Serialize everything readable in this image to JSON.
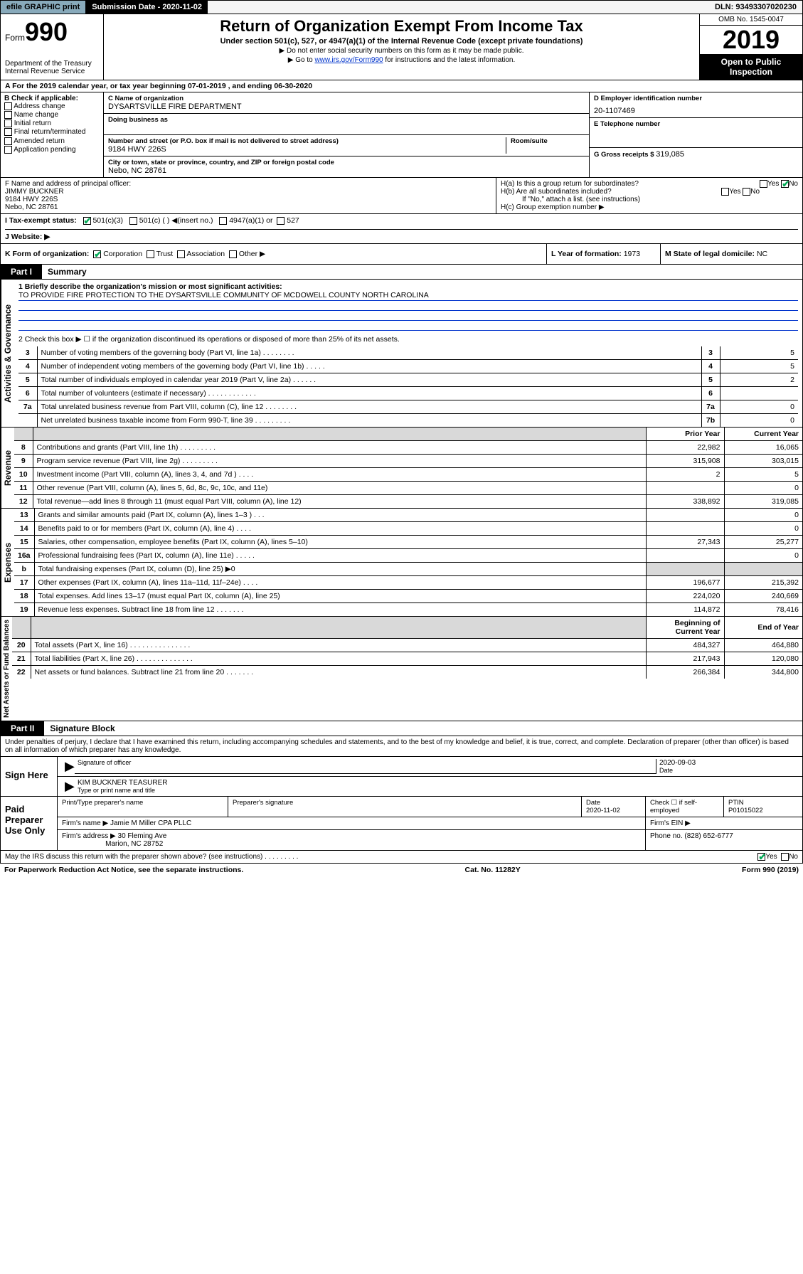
{
  "topbar": {
    "efile": "efile GRAPHIC print",
    "subdate_label": "Submission Date - 2020-11-02",
    "dln": "DLN: 93493307020230"
  },
  "header": {
    "form_label": "Form",
    "form_no": "990",
    "dept": "Department of the Treasury",
    "irs": "Internal Revenue Service",
    "title": "Return of Organization Exempt From Income Tax",
    "subtitle": "Under section 501(c), 527, or 4947(a)(1) of the Internal Revenue Code (except private foundations)",
    "note1": "▶ Do not enter social security numbers on this form as it may be made public.",
    "note2_pre": "▶ Go to ",
    "note2_link": "www.irs.gov/Form990",
    "note2_post": " for instructions and the latest information.",
    "omb": "OMB No. 1545-0047",
    "year": "2019",
    "open": "Open to Public Inspection"
  },
  "rowA": "A For the 2019 calendar year, or tax year beginning 07-01-2019   , and ending 06-30-2020",
  "boxB": {
    "label": "B Check if applicable:",
    "opts": [
      "Address change",
      "Name change",
      "Initial return",
      "Final return/terminated",
      "Amended return",
      "Application pending"
    ]
  },
  "boxC": {
    "name_lbl": "C Name of organization",
    "name": "DYSARTSVILLE FIRE DEPARTMENT",
    "dba_lbl": "Doing business as",
    "addr_lbl": "Number and street (or P.O. box if mail is not delivered to street address)",
    "room_lbl": "Room/suite",
    "addr": "9184 HWY 226S",
    "city_lbl": "City or town, state or province, country, and ZIP or foreign postal code",
    "city": "Nebo, NC  28761"
  },
  "boxD": {
    "lbl": "D Employer identification number",
    "val": "20-1107469"
  },
  "boxE": {
    "lbl": "E Telephone number",
    "val": ""
  },
  "boxG": {
    "lbl": "G Gross receipts $",
    "val": "319,085"
  },
  "boxF": {
    "lbl": "F  Name and address of principal officer:",
    "name": "JIMMY BUCKNER",
    "addr1": "9184 HWY 226S",
    "addr2": "Nebo, NC  28761"
  },
  "boxH": {
    "a": "H(a)  Is this a group return for subordinates?",
    "b": "H(b)  Are all subordinates included?",
    "bnote": "If \"No,\" attach a list. (see instructions)",
    "c": "H(c)  Group exemption number ▶",
    "yes": "Yes",
    "no": "No"
  },
  "boxI": {
    "lbl": "I    Tax-exempt status:",
    "o1": "501(c)(3)",
    "o2": "501(c) (   ) ◀(insert no.)",
    "o3": "4947(a)(1) or",
    "o4": "527"
  },
  "boxJ": {
    "lbl": "J   Website: ▶"
  },
  "boxK": {
    "lbl": "K Form of organization:",
    "opts": [
      "Corporation",
      "Trust",
      "Association",
      "Other ▶"
    ]
  },
  "boxL": {
    "lbl": "L Year of formation:",
    "val": "1973"
  },
  "boxM": {
    "lbl": "M State of legal domicile:",
    "val": "NC"
  },
  "part1": {
    "tab": "Part I",
    "title": "Summary"
  },
  "gov": {
    "vlabel": "Activities & Governance",
    "l1": "1  Briefly describe the organization's mission or most significant activities:",
    "mission": "TO PROVIDE FIRE PROTECTION TO THE DYSARTSVILLE COMMUNITY OF MCDOWELL COUNTY NORTH CAROLINA",
    "l2": "2   Check this box ▶ ☐  if the organization discontinued its operations or disposed of more than 25% of its net assets.",
    "rows": [
      {
        "n": "3",
        "d": "Number of voting members of the governing body (Part VI, line 1a)  .   .   .   .   .   .   .   .",
        "k": "3",
        "v": "5"
      },
      {
        "n": "4",
        "d": "Number of independent voting members of the governing body (Part VI, line 1b)  .   .   .   .   .",
        "k": "4",
        "v": "5"
      },
      {
        "n": "5",
        "d": "Total number of individuals employed in calendar year 2019 (Part V, line 2a)  .   .   .   .   .   .",
        "k": "5",
        "v": "2"
      },
      {
        "n": "6",
        "d": "Total number of volunteers (estimate if necessary)  .   .   .   .   .   .   .   .   .   .   .   .",
        "k": "6",
        "v": ""
      },
      {
        "n": "7a",
        "d": "Total unrelated business revenue from Part VIII, column (C), line 12  .   .   .   .   .   .   .   .",
        "k": "7a",
        "v": "0"
      },
      {
        "n": "",
        "d": "Net unrelated business taxable income from Form 990-T, line 39  .   .   .   .   .   .   .   .   .",
        "k": "7b",
        "v": "0"
      }
    ]
  },
  "rev": {
    "vlabel": "Revenue",
    "hdr_prior": "Prior Year",
    "hdr_curr": "Current Year",
    "rows": [
      {
        "n": "8",
        "d": "Contributions and grants (Part VIII, line 1h)  .   .   .   .   .   .   .   .   .",
        "p": "22,982",
        "c": "16,065"
      },
      {
        "n": "9",
        "d": "Program service revenue (Part VIII, line 2g)  .   .   .   .   .   .   .   .   .",
        "p": "315,908",
        "c": "303,015"
      },
      {
        "n": "10",
        "d": "Investment income (Part VIII, column (A), lines 3, 4, and 7d )  .   .   .   .",
        "p": "2",
        "c": "5"
      },
      {
        "n": "11",
        "d": "Other revenue (Part VIII, column (A), lines 5, 6d, 8c, 9c, 10c, and 11e)",
        "p": "",
        "c": "0"
      },
      {
        "n": "12",
        "d": "Total revenue—add lines 8 through 11 (must equal Part VIII, column (A), line 12)",
        "p": "338,892",
        "c": "319,085"
      }
    ]
  },
  "exp": {
    "vlabel": "Expenses",
    "rows": [
      {
        "n": "13",
        "d": "Grants and similar amounts paid (Part IX, column (A), lines 1–3 )  .   .   .",
        "p": "",
        "c": "0"
      },
      {
        "n": "14",
        "d": "Benefits paid to or for members (Part IX, column (A), line 4)  .   .   .   .",
        "p": "",
        "c": "0"
      },
      {
        "n": "15",
        "d": "Salaries, other compensation, employee benefits (Part IX, column (A), lines 5–10)",
        "p": "27,343",
        "c": "25,277"
      },
      {
        "n": "16a",
        "d": "Professional fundraising fees (Part IX, column (A), line 11e)  .   .   .   .   .",
        "p": "",
        "c": "0"
      },
      {
        "n": "b",
        "d": "Total fundraising expenses (Part IX, column (D), line 25) ▶0",
        "p": "__shade__",
        "c": "__shade__"
      },
      {
        "n": "17",
        "d": "Other expenses (Part IX, column (A), lines 11a–11d, 11f–24e)  .   .   .   .",
        "p": "196,677",
        "c": "215,392"
      },
      {
        "n": "18",
        "d": "Total expenses. Add lines 13–17 (must equal Part IX, column (A), line 25)",
        "p": "224,020",
        "c": "240,669"
      },
      {
        "n": "19",
        "d": "Revenue less expenses. Subtract line 18 from line 12  .   .   .   .   .   .   .",
        "p": "114,872",
        "c": "78,416"
      }
    ]
  },
  "net": {
    "vlabel": "Net Assets or Fund Balances",
    "hdr_beg": "Beginning of Current Year",
    "hdr_end": "End of Year",
    "rows": [
      {
        "n": "20",
        "d": "Total assets (Part X, line 16)  .   .   .   .   .   .   .   .   .   .   .   .   .   .   .",
        "p": "484,327",
        "c": "464,880"
      },
      {
        "n": "21",
        "d": "Total liabilities (Part X, line 26)  .   .   .   .   .   .   .   .   .   .   .   .   .   .",
        "p": "217,943",
        "c": "120,080"
      },
      {
        "n": "22",
        "d": "Net assets or fund balances. Subtract line 21 from line 20  .   .   .   .   .   .   .",
        "p": "266,384",
        "c": "344,800"
      }
    ]
  },
  "part2": {
    "tab": "Part II",
    "title": "Signature Block"
  },
  "perjury": "Under penalties of perjury, I declare that I have examined this return, including accompanying schedules and statements, and to the best of my knowledge and belief, it is true, correct, and complete. Declaration of preparer (other than officer) is based on all information of which preparer has any knowledge.",
  "sign": {
    "left": "Sign Here",
    "date": "2020-09-03",
    "sig_lbl": "Signature of officer",
    "date_lbl": "Date",
    "name": "KIM BUCKNER TEASURER",
    "name_lbl": "Type or print name and title"
  },
  "paid": {
    "left": "Paid Preparer Use Only",
    "h1": "Print/Type preparer's name",
    "h2": "Preparer's signature",
    "h3": "Date",
    "h3v": "2020-11-02",
    "h4": "Check ☐ if self-employed",
    "h5": "PTIN",
    "h5v": "P01015022",
    "firm_name_lbl": "Firm's name    ▶",
    "firm_name": "Jamie M Miller CPA PLLC",
    "firm_ein_lbl": "Firm's EIN ▶",
    "firm_addr_lbl": "Firm's address ▶",
    "firm_addr1": "30 Fleming Ave",
    "firm_addr2": "Marion, NC  28752",
    "phone_lbl": "Phone no.",
    "phone": "(828) 652-6777"
  },
  "discuss": "May the IRS discuss this return with the preparer shown above? (see instructions)  .   .   .   .   .   .   .   .   .",
  "footer": {
    "left": "For Paperwork Reduction Act Notice, see the separate instructions.",
    "mid": "Cat. No. 11282Y",
    "right": "Form 990 (2019)"
  }
}
